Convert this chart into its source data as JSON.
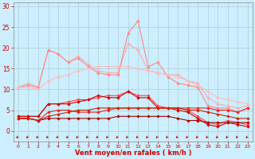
{
  "x": [
    0,
    1,
    2,
    3,
    4,
    5,
    6,
    7,
    8,
    9,
    10,
    11,
    12,
    13,
    14,
    15,
    16,
    17,
    18,
    19,
    20,
    21,
    22,
    23
  ],
  "series": [
    {
      "color": "#ffaaaa",
      "linewidth": 0.8,
      "marker": "D",
      "markersize": 1.8,
      "y": [
        10.5,
        11.5,
        10.5,
        19.5,
        18.5,
        16.5,
        18.0,
        16.0,
        14.5,
        14.0,
        14.0,
        21.0,
        19.5,
        14.5,
        14.0,
        13.5,
        13.5,
        12.0,
        11.5,
        8.0,
        6.5,
        6.0,
        5.5,
        6.0
      ]
    },
    {
      "color": "#ff8888",
      "linewidth": 0.8,
      "marker": "D",
      "markersize": 1.8,
      "y": [
        10.5,
        11.0,
        10.5,
        19.5,
        18.5,
        16.5,
        17.5,
        15.5,
        14.0,
        13.5,
        13.5,
        23.5,
        26.5,
        15.5,
        16.5,
        13.0,
        11.5,
        11.0,
        10.5,
        6.0,
        5.5,
        5.5,
        4.5,
        5.5
      ]
    },
    {
      "color": "#ffbbbb",
      "linewidth": 0.8,
      "marker": "D",
      "markersize": 1.8,
      "y": [
        10.5,
        10.5,
        10.0,
        12.0,
        13.0,
        13.5,
        14.5,
        15.0,
        15.5,
        15.5,
        15.5,
        15.5,
        15.0,
        14.5,
        14.0,
        13.5,
        13.0,
        12.0,
        11.0,
        9.5,
        8.0,
        7.5,
        7.0,
        6.5
      ]
    },
    {
      "color": "#ff4444",
      "linewidth": 0.8,
      "marker": "D",
      "markersize": 1.8,
      "y": [
        3.5,
        3.5,
        3.5,
        6.5,
        6.5,
        7.0,
        7.5,
        7.5,
        8.0,
        8.5,
        8.5,
        9.5,
        8.5,
        8.5,
        6.0,
        5.5,
        5.5,
        5.0,
        3.5,
        2.0,
        1.5,
        2.5,
        2.0,
        1.5
      ]
    },
    {
      "color": "#cc0000",
      "linewidth": 0.8,
      "marker": "D",
      "markersize": 1.8,
      "y": [
        3.5,
        3.5,
        3.5,
        6.5,
        6.5,
        6.5,
        7.0,
        7.5,
        8.5,
        8.0,
        8.0,
        9.5,
        8.0,
        8.0,
        5.5,
        5.5,
        5.0,
        4.5,
        3.0,
        1.5,
        1.0,
        2.0,
        1.5,
        1.0
      ]
    },
    {
      "color": "#ee2222",
      "linewidth": 0.8,
      "marker": "D",
      "markersize": 1.8,
      "y": [
        3.0,
        3.0,
        2.5,
        4.5,
        5.0,
        5.0,
        4.5,
        4.5,
        4.5,
        5.0,
        5.5,
        5.5,
        5.5,
        5.5,
        5.5,
        5.5,
        5.5,
        5.5,
        5.5,
        5.5,
        5.0,
        5.0,
        4.5,
        5.5
      ]
    },
    {
      "color": "#aa0000",
      "linewidth": 0.8,
      "marker": "D",
      "markersize": 1.8,
      "y": [
        3.0,
        3.0,
        2.5,
        3.0,
        3.0,
        3.0,
        3.0,
        3.0,
        3.0,
        3.0,
        3.5,
        3.5,
        3.5,
        3.5,
        3.5,
        3.5,
        3.0,
        2.5,
        2.5,
        2.0,
        2.0,
        2.0,
        2.0,
        2.0
      ]
    },
    {
      "color": "#cc2200",
      "linewidth": 0.8,
      "marker": "D",
      "markersize": 1.8,
      "y": [
        3.0,
        3.0,
        2.5,
        3.5,
        4.0,
        4.5,
        5.0,
        5.0,
        5.5,
        5.5,
        5.5,
        5.5,
        5.5,
        5.5,
        5.5,
        5.5,
        5.5,
        5.0,
        5.0,
        4.5,
        4.0,
        3.5,
        3.0,
        3.0
      ]
    }
  ],
  "arrow_color": "#cc0000",
  "xlabel": "Vent moyen/en rafales ( km/h )",
  "xlim": [
    -0.5,
    23.5
  ],
  "ylim": [
    -2.5,
    31
  ],
  "yticks": [
    0,
    5,
    10,
    15,
    20,
    25,
    30
  ],
  "xticks": [
    0,
    1,
    2,
    3,
    4,
    5,
    6,
    7,
    8,
    9,
    10,
    11,
    12,
    13,
    14,
    15,
    16,
    17,
    18,
    19,
    20,
    21,
    22,
    23
  ],
  "background_color": "#cceeff",
  "grid_color": "#aacccc",
  "tick_color": "#cc0000",
  "label_color": "#cc0000"
}
